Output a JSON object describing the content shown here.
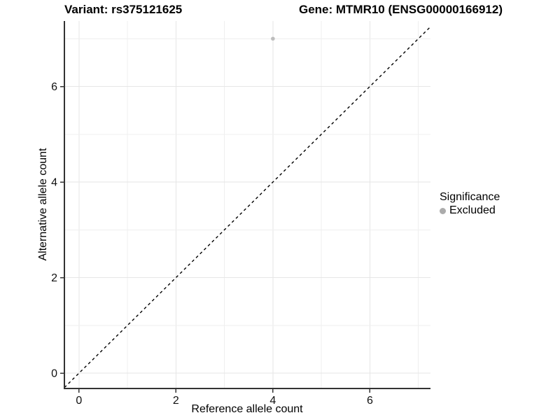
{
  "title": {
    "variant": "Variant: rs375121625",
    "gene": "Gene: MTMR10 (ENSG00000166912)"
  },
  "legend": {
    "title": "Significance",
    "items": [
      {
        "label": "Excluded",
        "color": "#ababab"
      }
    ]
  },
  "colors": {
    "background": "#ffffff",
    "grid_major": "#e6e6e6",
    "grid_minor": "#efefef",
    "axis_line": "#333333",
    "tick_text": "#111111",
    "reference_line": "#000000",
    "point": "#bdbdbd"
  },
  "chart_data": {
    "type": "scatter",
    "title": "Variant: rs375121625 | Gene: MTMR10 (ENSG00000166912)",
    "xlabel": "Reference allele count",
    "ylabel": "Alternative allele count",
    "xlim": [
      -0.3,
      7.25
    ],
    "ylim": [
      -0.32,
      7.37
    ],
    "x_ticks": [
      0,
      2,
      4,
      6
    ],
    "y_ticks": [
      0,
      2,
      4,
      6
    ],
    "x_grid": [
      0,
      1,
      2,
      3,
      4,
      5,
      6,
      7
    ],
    "y_grid": [
      0,
      1,
      2,
      3,
      4,
      5,
      6,
      7
    ],
    "grid": true,
    "legend_position": "right",
    "series": [
      {
        "name": "Excluded",
        "color": "#bdbdbd",
        "marker_radius": 2.8,
        "points": [
          {
            "x": 4,
            "y": 7
          }
        ]
      }
    ],
    "reference_line": {
      "kind": "identity",
      "slope": 1,
      "intercept": 0,
      "style": "dashed",
      "color": "#000000"
    }
  }
}
